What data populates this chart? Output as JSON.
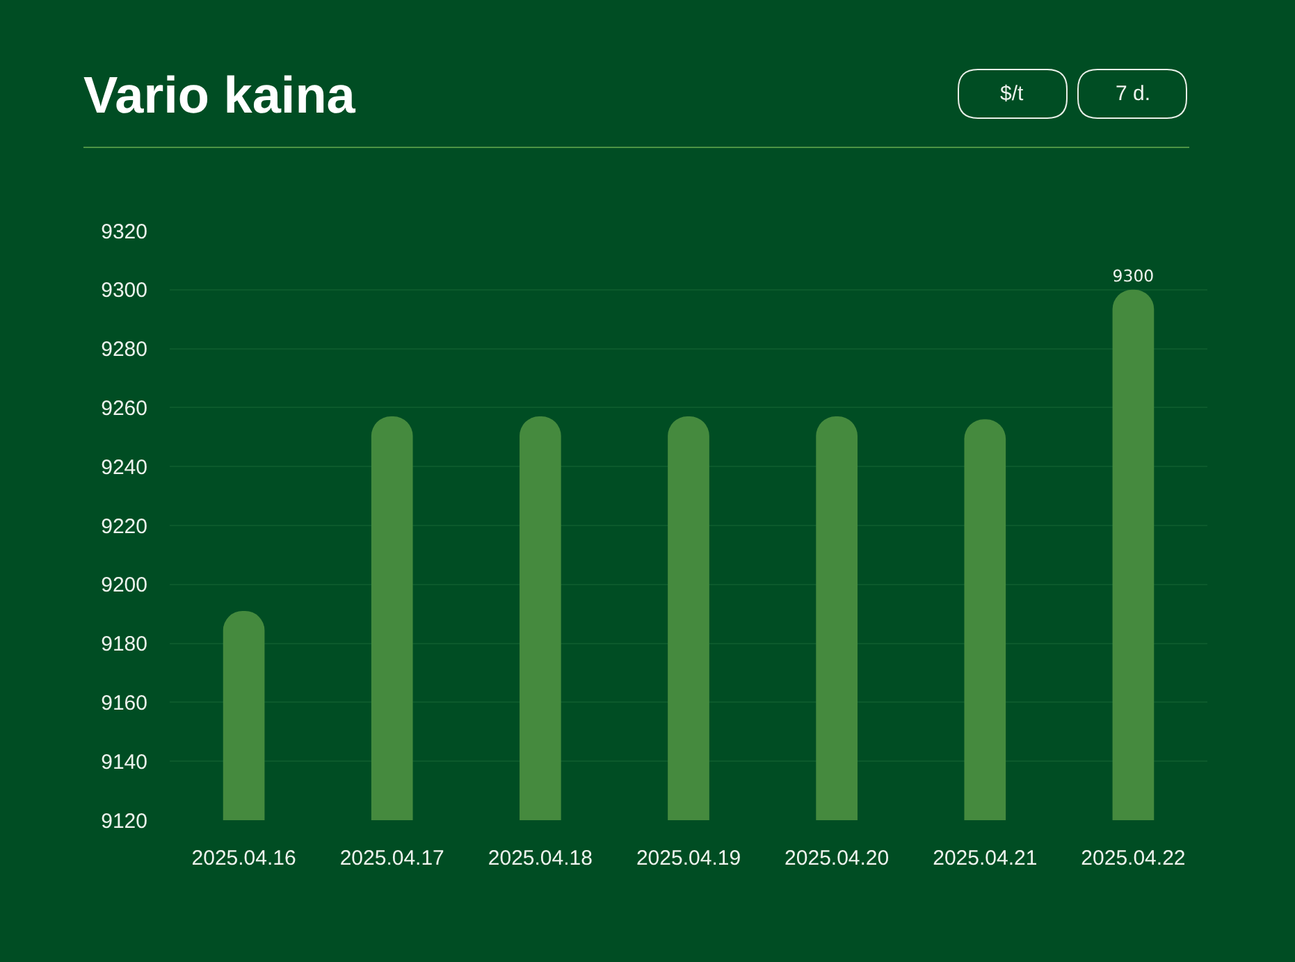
{
  "chart_data": {
    "type": "bar",
    "title": "Vario kaina",
    "annotations": [
      "$/t",
      "7 d."
    ],
    "categories": [
      "2025.04.16",
      "2025.04.17",
      "2025.04.18",
      "2025.04.19",
      "2025.04.20",
      "2025.04.21",
      "2025.04.22"
    ],
    "values": [
      9191,
      9257,
      9257,
      9257,
      9257,
      9256,
      9300
    ],
    "value_labels": [
      null,
      null,
      null,
      null,
      null,
      null,
      "9300"
    ],
    "color": "#458a3e",
    "ylim": [
      9120,
      9320
    ],
    "yticks": [
      9120,
      9140,
      9160,
      9180,
      9200,
      9220,
      9240,
      9260,
      9280,
      9300,
      9320
    ],
    "grid": "y"
  }
}
